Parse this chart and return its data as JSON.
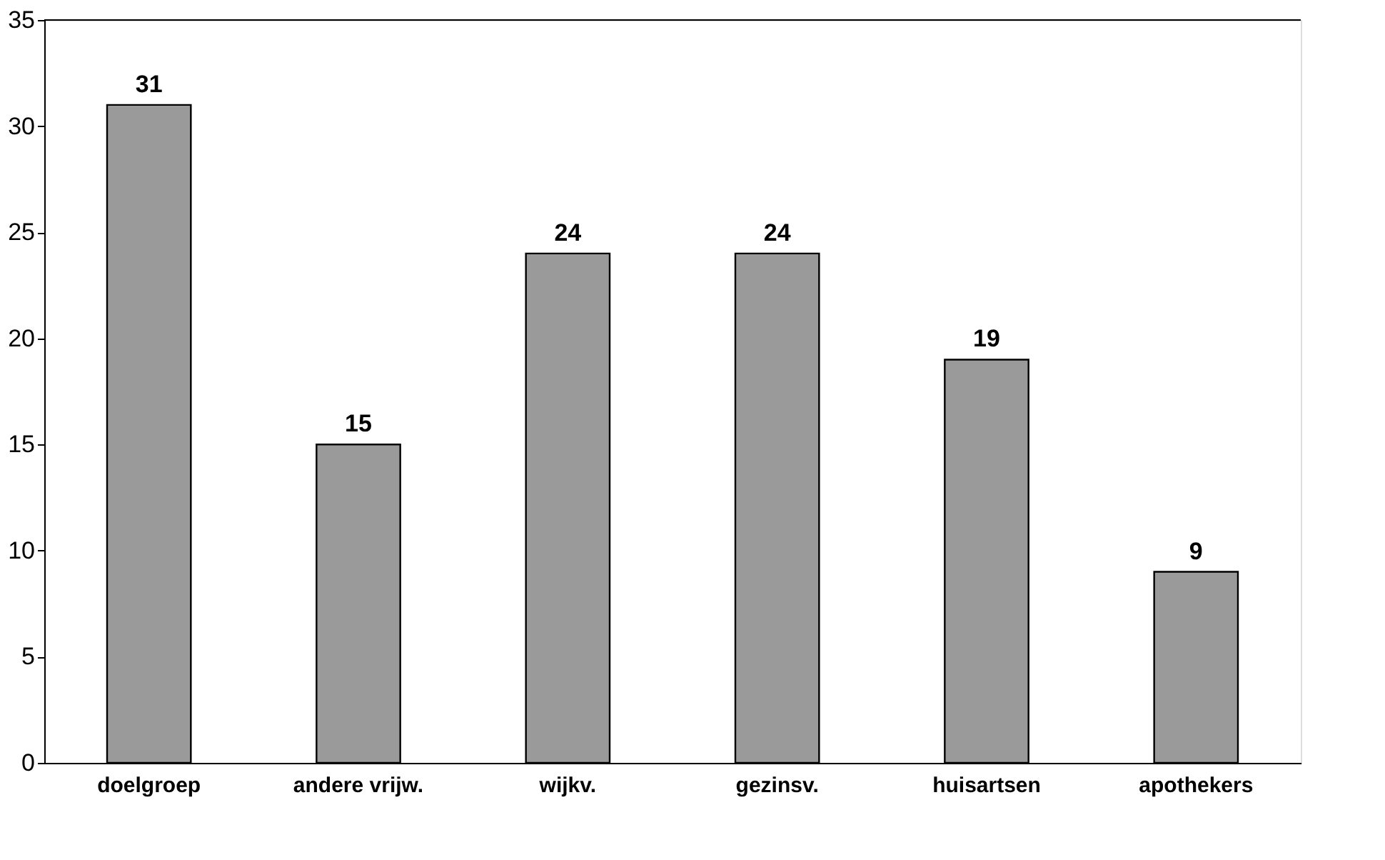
{
  "chart_data": {
    "type": "bar",
    "categories": [
      "doelgroep",
      "andere vrijw.",
      "wijkv.",
      "gezinsv.",
      "huisartsen",
      "apothekers"
    ],
    "values": [
      31,
      15,
      24,
      24,
      19,
      9
    ],
    "color": "#9a9a9a",
    "ylim": [
      0,
      35
    ],
    "yticks": [
      0,
      5,
      10,
      15,
      20,
      25,
      30,
      35
    ],
    "grid": false,
    "data_labels": true
  }
}
